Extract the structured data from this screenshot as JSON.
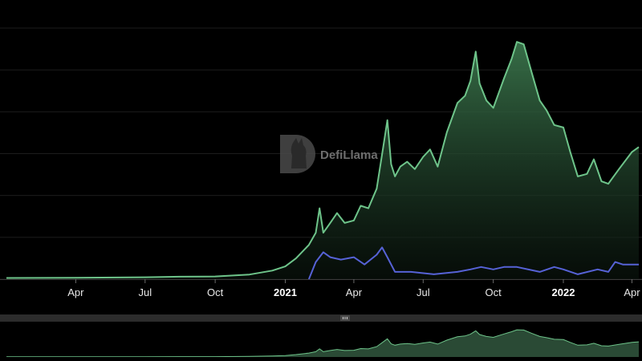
{
  "watermark": {
    "text": "DefiLlama",
    "logo_icon": "llama-logo-icon"
  },
  "colors": {
    "background": "#000000",
    "tvl_line": "#6ec48a",
    "tvl_fill_top": "#3d7a4f",
    "secondary_line": "#5662d6",
    "grid": "#1c1c1c",
    "zoom_track": "#2c2c2c",
    "zoom_fill": "#2a4a35"
  },
  "chart_data": {
    "type": "area",
    "x_axis_type": "date",
    "x_range": [
      "2020-01-01",
      "2022-04-10"
    ],
    "y_range": [
      0,
      100
    ],
    "y_tick_labels_visible": false,
    "grid": true,
    "x_tick_labels": [
      {
        "date": "2020-04-01",
        "label": "Apr",
        "major": false
      },
      {
        "date": "2020-07-01",
        "label": "Jul",
        "major": false
      },
      {
        "date": "2020-10-01",
        "label": "Oct",
        "major": false
      },
      {
        "date": "2021-01-01",
        "label": "2021",
        "major": true
      },
      {
        "date": "2021-04-01",
        "label": "Apr",
        "major": false
      },
      {
        "date": "2021-07-01",
        "label": "Jul",
        "major": false
      },
      {
        "date": "2021-10-01",
        "label": "Oct",
        "major": false
      },
      {
        "date": "2022-01-01",
        "label": "2022",
        "major": true
      },
      {
        "date": "2022-04-01",
        "label": "Apr",
        "major": false
      }
    ],
    "series": [
      {
        "type": "area",
        "color": "#6ec48a",
        "points": [
          [
            "2020-01-01",
            0.5
          ],
          [
            "2020-04-01",
            0.6
          ],
          [
            "2020-07-01",
            0.8
          ],
          [
            "2020-08-15",
            1.0
          ],
          [
            "2020-10-01",
            1.1
          ],
          [
            "2020-11-15",
            1.9
          ],
          [
            "2020-12-15",
            3.5
          ],
          [
            "2021-01-01",
            5.2
          ],
          [
            "2021-01-15",
            8.5
          ],
          [
            "2021-02-01",
            14
          ],
          [
            "2021-02-10",
            19
          ],
          [
            "2021-02-15",
            29
          ],
          [
            "2021-02-20",
            19
          ],
          [
            "2021-03-01",
            23
          ],
          [
            "2021-03-10",
            27
          ],
          [
            "2021-03-20",
            23
          ],
          [
            "2021-04-01",
            24
          ],
          [
            "2021-04-10",
            30
          ],
          [
            "2021-04-20",
            29
          ],
          [
            "2021-05-01",
            37
          ],
          [
            "2021-05-10",
            55
          ],
          [
            "2021-05-15",
            65
          ],
          [
            "2021-05-20",
            47
          ],
          [
            "2021-05-25",
            42
          ],
          [
            "2021-06-01",
            46
          ],
          [
            "2021-06-10",
            48
          ],
          [
            "2021-06-20",
            45
          ],
          [
            "2021-07-01",
            50
          ],
          [
            "2021-07-10",
            53
          ],
          [
            "2021-07-20",
            46
          ],
          [
            "2021-08-01",
            60
          ],
          [
            "2021-08-15",
            72
          ],
          [
            "2021-08-25",
            75
          ],
          [
            "2021-09-01",
            81
          ],
          [
            "2021-09-08",
            93
          ],
          [
            "2021-09-13",
            80
          ],
          [
            "2021-09-22",
            73
          ],
          [
            "2021-10-01",
            70
          ],
          [
            "2021-10-15",
            82
          ],
          [
            "2021-10-25",
            90
          ],
          [
            "2021-11-01",
            97
          ],
          [
            "2021-11-10",
            96
          ],
          [
            "2021-11-20",
            85
          ],
          [
            "2021-12-01",
            73
          ],
          [
            "2021-12-10",
            69
          ],
          [
            "2021-12-20",
            63
          ],
          [
            "2022-01-01",
            62
          ],
          [
            "2022-01-10",
            52
          ],
          [
            "2022-01-20",
            42
          ],
          [
            "2022-02-01",
            43
          ],
          [
            "2022-02-10",
            49
          ],
          [
            "2022-02-20",
            40
          ],
          [
            "2022-03-01",
            39
          ],
          [
            "2022-03-15",
            45
          ],
          [
            "2022-04-01",
            52
          ],
          [
            "2022-04-10",
            54
          ]
        ]
      },
      {
        "type": "line",
        "color": "#5662d6",
        "points": [
          [
            "2021-02-01",
            0
          ],
          [
            "2021-02-10",
            7
          ],
          [
            "2021-02-20",
            11
          ],
          [
            "2021-03-01",
            9
          ],
          [
            "2021-03-15",
            8
          ],
          [
            "2021-04-01",
            9
          ],
          [
            "2021-04-15",
            6
          ],
          [
            "2021-05-01",
            10
          ],
          [
            "2021-05-08",
            13
          ],
          [
            "2021-05-15",
            9
          ],
          [
            "2021-05-25",
            3
          ],
          [
            "2021-06-15",
            3
          ],
          [
            "2021-07-15",
            2
          ],
          [
            "2021-08-15",
            3
          ],
          [
            "2021-09-01",
            4
          ],
          [
            "2021-09-15",
            5
          ],
          [
            "2021-10-01",
            4
          ],
          [
            "2021-10-15",
            5
          ],
          [
            "2021-11-01",
            5
          ],
          [
            "2021-12-01",
            3
          ],
          [
            "2021-12-20",
            5
          ],
          [
            "2022-01-01",
            4
          ],
          [
            "2022-01-20",
            2
          ],
          [
            "2022-02-15",
            4
          ],
          [
            "2022-03-01",
            3
          ],
          [
            "2022-03-10",
            7
          ],
          [
            "2022-03-20",
            6
          ],
          [
            "2022-04-10",
            6
          ]
        ]
      }
    ]
  }
}
